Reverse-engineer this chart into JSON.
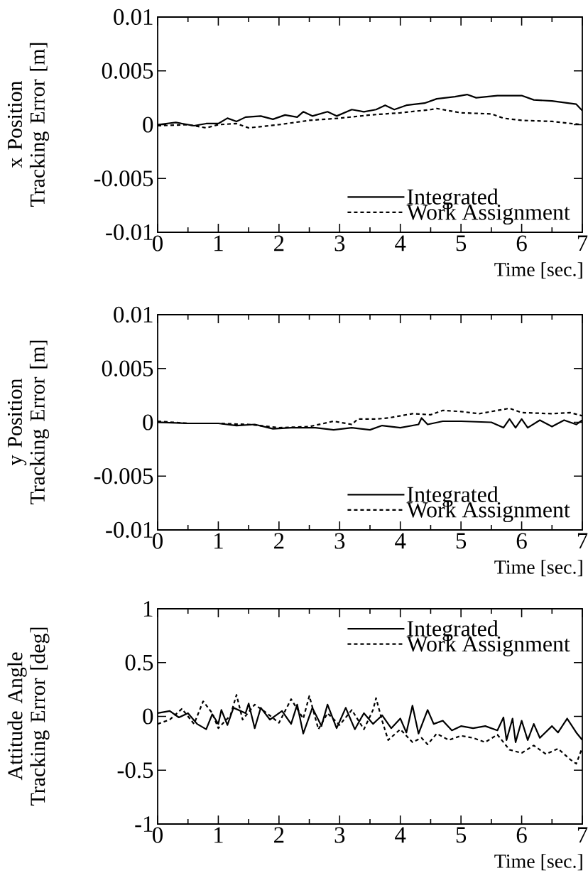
{
  "chart_data": [
    {
      "type": "line",
      "xlabel": "Time [sec.]",
      "ylabel": "x Position Tracking Error [m]",
      "xlim": [
        0,
        7
      ],
      "ylim": [
        -0.01,
        0.01
      ],
      "xticks": [
        0,
        1,
        2,
        3,
        4,
        5,
        6,
        7
      ],
      "yticks": [
        -0.01,
        -0.005,
        0,
        0.005,
        0.01
      ],
      "legend": "bottom right",
      "grid": false,
      "series": [
        {
          "name": "Integrated",
          "color": "#000000",
          "line_style": "solid",
          "x": [
            0,
            0.3,
            0.6,
            0.8,
            1.0,
            1.15,
            1.3,
            1.45,
            1.7,
            1.9,
            2.1,
            2.3,
            2.4,
            2.55,
            2.8,
            2.95,
            3.2,
            3.4,
            3.6,
            3.75,
            3.9,
            4.1,
            4.4,
            4.6,
            4.9,
            5.1,
            5.25,
            5.6,
            6.0,
            6.2,
            6.5,
            6.9,
            7.0
          ],
          "values": [
            0,
            0.0002,
            -0.0001,
            0.0001,
            0.0001,
            0.0006,
            0.0003,
            0.0007,
            0.0008,
            0.0005,
            0.0009,
            0.0007,
            0.0012,
            0.0008,
            0.0012,
            0.0008,
            0.0014,
            0.0012,
            0.0014,
            0.0018,
            0.0014,
            0.0018,
            0.002,
            0.0024,
            0.0026,
            0.0028,
            0.0025,
            0.0027,
            0.0027,
            0.0023,
            0.0022,
            0.0019,
            0.0013
          ]
        },
        {
          "name": "Work Assignment",
          "color": "#000000",
          "line_style": "dashed",
          "x": [
            0,
            0.5,
            0.8,
            1.0,
            1.3,
            1.5,
            2.0,
            2.5,
            3.0,
            3.5,
            4.0,
            4.5,
            4.6,
            5.0,
            5.5,
            5.7,
            6.0,
            6.5,
            7.0
          ],
          "values": [
            -0.0001,
            0,
            -0.0003,
            0,
            0.0001,
            -0.0003,
            0,
            0.0004,
            0.0006,
            0.0009,
            0.0011,
            0.0014,
            0.0015,
            0.0011,
            0.001,
            0.0006,
            0.0004,
            0.0003,
            0
          ]
        }
      ]
    },
    {
      "type": "line",
      "xlabel": "Time [sec.]",
      "ylabel": "y Position Tracking Error [m]",
      "xlim": [
        0,
        7
      ],
      "ylim": [
        -0.01,
        0.01
      ],
      "xticks": [
        0,
        1,
        2,
        3,
        4,
        5,
        6,
        7
      ],
      "yticks": [
        -0.01,
        -0.005,
        0,
        0.005,
        0.01
      ],
      "legend": "bottom right",
      "grid": false,
      "series": [
        {
          "name": "Integrated",
          "color": "#000000",
          "line_style": "solid",
          "x": [
            0,
            0.5,
            1.0,
            1.3,
            1.6,
            1.9,
            2.2,
            2.6,
            2.9,
            3.2,
            3.5,
            3.7,
            4.0,
            4.3,
            4.35,
            4.45,
            4.7,
            5.0,
            5.5,
            5.7,
            5.8,
            5.9,
            6.0,
            6.1,
            6.3,
            6.5,
            6.7,
            6.9,
            7.0
          ],
          "values": [
            0,
            -0.0001,
            -0.0001,
            -0.0003,
            -0.0002,
            -0.0006,
            -0.0005,
            -0.0005,
            -0.0007,
            -0.0005,
            -0.0007,
            -0.0003,
            -0.0005,
            -0.0002,
            0.0004,
            -0.0002,
            0.0001,
            0.0001,
            0,
            -0.0005,
            0.0003,
            -0.0005,
            0.0003,
            -0.0005,
            0.0002,
            -0.0004,
            0.0002,
            -0.0002,
            0.0002
          ]
        },
        {
          "name": "Work Assignment",
          "color": "#000000",
          "line_style": "dashed",
          "x": [
            0,
            0.5,
            1.0,
            1.5,
            2.0,
            2.5,
            2.9,
            3.2,
            3.3,
            3.6,
            3.8,
            4.2,
            4.5,
            4.7,
            5.0,
            5.3,
            5.6,
            5.8,
            6.0,
            6.5,
            6.8,
            7.0
          ],
          "values": [
            0.0001,
            -0.0001,
            -0.0001,
            -0.0002,
            -0.0005,
            -0.0004,
            0.0001,
            -0.0002,
            0.0003,
            0.0003,
            0.0004,
            0.0008,
            0.0007,
            0.0011,
            0.001,
            0.0008,
            0.0011,
            0.0013,
            0.0009,
            0.0008,
            0.0009,
            0.0006
          ]
        }
      ]
    },
    {
      "type": "line",
      "xlabel": "Time [sec.]",
      "ylabel": "Attitude Angle Tracking Error [deg]",
      "xlim": [
        0,
        7
      ],
      "ylim": [
        -1,
        1
      ],
      "xticks": [
        0,
        1,
        2,
        3,
        4,
        5,
        6,
        7
      ],
      "yticks": [
        -1,
        -0.5,
        0,
        0.5,
        1
      ],
      "legend": "top right",
      "grid": false,
      "series": [
        {
          "name": "Integrated",
          "color": "#000000",
          "line_style": "solid",
          "x": [
            0,
            0.2,
            0.35,
            0.5,
            0.65,
            0.8,
            0.9,
            1.0,
            1.05,
            1.15,
            1.25,
            1.45,
            1.5,
            1.6,
            1.7,
            1.85,
            2.05,
            2.2,
            2.3,
            2.4,
            2.55,
            2.7,
            2.8,
            2.95,
            3.1,
            3.25,
            3.4,
            3.55,
            3.7,
            3.85,
            4.0,
            4.1,
            4.2,
            4.3,
            4.45,
            4.55,
            4.7,
            4.85,
            5.0,
            5.2,
            5.4,
            5.6,
            5.7,
            5.75,
            5.85,
            5.9,
            6.0,
            6.1,
            6.2,
            6.3,
            6.5,
            6.6,
            6.75,
            6.9,
            7.0
          ],
          "values": [
            0.03,
            0.05,
            -0.01,
            0.03,
            -0.07,
            -0.12,
            0.02,
            -0.07,
            0.06,
            -0.08,
            0.08,
            0.03,
            0.12,
            -0.11,
            0.08,
            -0.03,
            0.05,
            -0.07,
            0.11,
            -0.16,
            0.08,
            -0.09,
            0.11,
            -0.11,
            0.08,
            -0.12,
            0.03,
            -0.07,
            0.01,
            -0.11,
            -0.02,
            -0.15,
            0.1,
            -0.16,
            0.06,
            -0.07,
            -0.04,
            -0.13,
            -0.09,
            -0.11,
            -0.09,
            -0.13,
            -0.01,
            -0.22,
            -0.02,
            -0.24,
            -0.04,
            -0.22,
            -0.07,
            -0.2,
            -0.09,
            -0.15,
            -0.02,
            -0.15,
            -0.22
          ]
        },
        {
          "name": "Work Assignment",
          "color": "#000000",
          "line_style": "dashed",
          "x": [
            0,
            0.2,
            0.4,
            0.6,
            0.75,
            0.9,
            1.0,
            1.2,
            1.3,
            1.4,
            1.6,
            1.8,
            2.0,
            2.2,
            2.4,
            2.5,
            2.65,
            2.8,
            3.0,
            3.2,
            3.4,
            3.55,
            3.6,
            3.7,
            3.8,
            4.0,
            4.2,
            4.35,
            4.45,
            4.6,
            4.8,
            5.0,
            5.2,
            5.4,
            5.6,
            5.8,
            6.0,
            6.2,
            6.4,
            6.6,
            6.8,
            6.9,
            7.0
          ],
          "values": [
            -0.07,
            -0.03,
            0.07,
            -0.07,
            0.14,
            0.03,
            -0.11,
            0.01,
            0.2,
            -0.03,
            0.11,
            0.03,
            -0.06,
            0.16,
            -0.02,
            0.19,
            -0.12,
            0.03,
            -0.08,
            0.06,
            -0.12,
            0.06,
            0.17,
            -0.04,
            -0.22,
            -0.12,
            -0.24,
            -0.2,
            -0.26,
            -0.16,
            -0.22,
            -0.18,
            -0.2,
            -0.24,
            -0.17,
            -0.31,
            -0.34,
            -0.27,
            -0.35,
            -0.3,
            -0.4,
            -0.44,
            -0.29
          ]
        }
      ]
    }
  ]
}
